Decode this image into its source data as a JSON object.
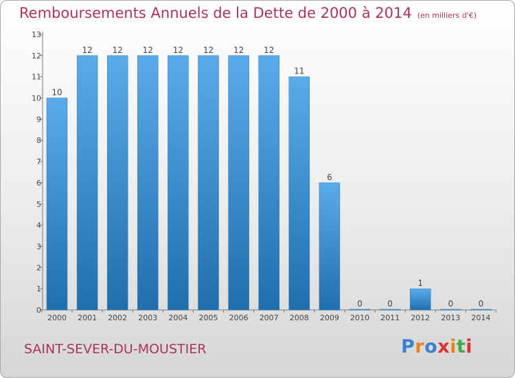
{
  "header": {
    "title": "Remboursements Annuels de la Dette de 2000 à 2014",
    "unit": "(en milliers d'€)"
  },
  "footer": {
    "commune": "SAINT-SEVER-DU-MOUSTIER",
    "logo": "Proxiti"
  },
  "colors": {
    "title": "#a8345e",
    "bar_light": "#5aabea",
    "bar_dark": "#1f6fae",
    "logo_letters": [
      "#3b7fd0",
      "#e8841a",
      "#3b7fd0",
      "#d8332f",
      "#e8841a",
      "#3fa84a",
      "#d8332f"
    ]
  },
  "chart_data": {
    "type": "bar",
    "title": "Remboursements Annuels de la Dette de 2000 à 2014",
    "subtitle": "(en milliers d'€)",
    "xlabel": "",
    "ylabel": "",
    "categories": [
      "2000",
      "2001",
      "2002",
      "2003",
      "2004",
      "2005",
      "2006",
      "2007",
      "2008",
      "2009",
      "2010",
      "2011",
      "2012",
      "2013",
      "2014"
    ],
    "values": [
      10,
      12,
      12,
      12,
      12,
      12,
      12,
      12,
      11,
      6,
      0,
      0,
      1,
      0,
      0
    ],
    "data_labels": [
      "10",
      "12",
      "12",
      "12",
      "12",
      "12",
      "12",
      "12",
      "11",
      "6",
      "0",
      "0",
      "1",
      "0",
      "0"
    ],
    "ylim": [
      0,
      13
    ],
    "yticks": [
      0,
      1,
      2,
      3,
      4,
      5,
      6,
      7,
      8,
      9,
      10,
      11,
      12,
      13
    ],
    "grid": false,
    "legend": "none"
  }
}
